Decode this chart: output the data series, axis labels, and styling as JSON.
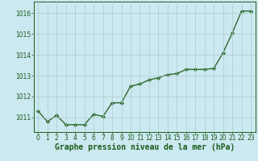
{
  "x": [
    0,
    1,
    2,
    3,
    4,
    5,
    6,
    7,
    8,
    9,
    10,
    11,
    12,
    13,
    14,
    15,
    16,
    17,
    18,
    19,
    20,
    21,
    22,
    23
  ],
  "y": [
    1011.3,
    1010.8,
    1011.1,
    1010.65,
    1010.65,
    1010.65,
    1011.15,
    1011.05,
    1011.7,
    1011.7,
    1012.5,
    1012.6,
    1012.8,
    1012.9,
    1013.05,
    1013.1,
    1013.3,
    1013.3,
    1013.3,
    1013.35,
    1014.1,
    1015.05,
    1016.1,
    1016.1
  ],
  "line_color": "#2d6a2d",
  "marker": "D",
  "marker_size": 2.2,
  "linewidth": 1.0,
  "bg_color": "#cce8f0",
  "grid_color": "#aacccc",
  "xlabel": "Graphe pression niveau de la mer (hPa)",
  "xlabel_color": "#1a5c1a",
  "xlabel_fontsize": 7.0,
  "tick_color": "#1a5c1a",
  "tick_fontsize": 5.5,
  "ylim": [
    1010.3,
    1016.55
  ],
  "yticks": [
    1011,
    1012,
    1013,
    1014,
    1015,
    1016
  ],
  "xlim": [
    -0.5,
    23.5
  ],
  "xticks": [
    0,
    1,
    2,
    3,
    4,
    5,
    6,
    7,
    8,
    9,
    10,
    11,
    12,
    13,
    14,
    15,
    16,
    17,
    18,
    19,
    20,
    21,
    22,
    23
  ]
}
